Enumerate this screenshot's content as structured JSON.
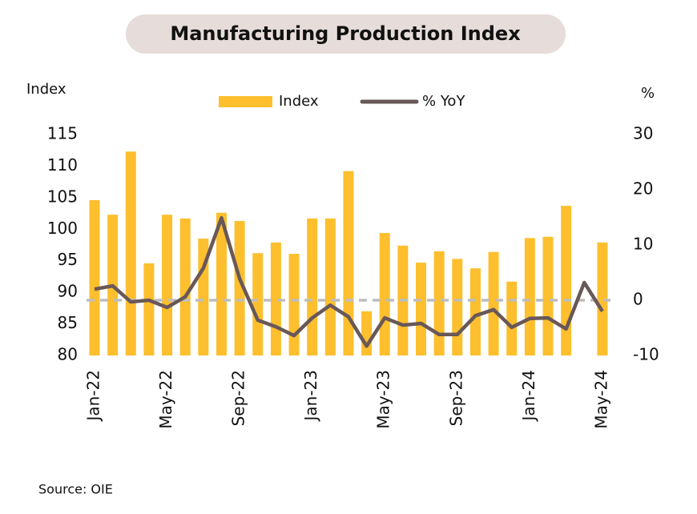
{
  "chart_data": {
    "type": "bar_line",
    "title": "Manufacturing Production Index",
    "y_label": "Index",
    "y2_label": "%",
    "source": "Source: OIE",
    "categories": [
      "Jan-22",
      null,
      null,
      null,
      "May-22",
      null,
      null,
      null,
      "Sep-22",
      null,
      null,
      null,
      "Jan-23",
      null,
      null,
      null,
      "May-23",
      null,
      null,
      null,
      "Sep-23",
      null,
      null,
      null,
      "Jan-24",
      null,
      null,
      null,
      "May-24"
    ],
    "series": [
      {
        "name": "Index",
        "type": "bar",
        "color": "#fdbf2d",
        "values": [
          104.6,
          102.3,
          112.3,
          94.6,
          102.3,
          101.7,
          98.5,
          102.6,
          101.3,
          96.2,
          97.9,
          96.1,
          101.7,
          101.7,
          109.2,
          87.0,
          99.4,
          97.4,
          94.7,
          96.5,
          95.3,
          93.8,
          96.4,
          91.7,
          98.6,
          98.8,
          103.7,
          null,
          97.9
        ]
      },
      {
        "name": "% YoY",
        "type": "line",
        "axis": "y2",
        "color": "#695858",
        "values": [
          2.0,
          2.6,
          -0.3,
          0,
          -1.3,
          0.6,
          5.8,
          14.9,
          3.9,
          -3.6,
          -4.8,
          -6.4,
          -3.2,
          -0.9,
          -3.0,
          -8.3,
          -3.2,
          -4.5,
          -4.2,
          -6.2,
          -6.2,
          -2.8,
          -1.7,
          -4.9,
          -3.3,
          -3.2,
          -5.2,
          3.2,
          -2.0
        ]
      }
    ],
    "ylim": [
      80,
      115
    ],
    "yticks": [
      80,
      85,
      90,
      95,
      100,
      105,
      110,
      115
    ],
    "y2lim": [
      -10,
      30
    ],
    "y2ticks": [
      -10,
      0,
      10,
      20,
      30
    ],
    "legend": "top"
  }
}
